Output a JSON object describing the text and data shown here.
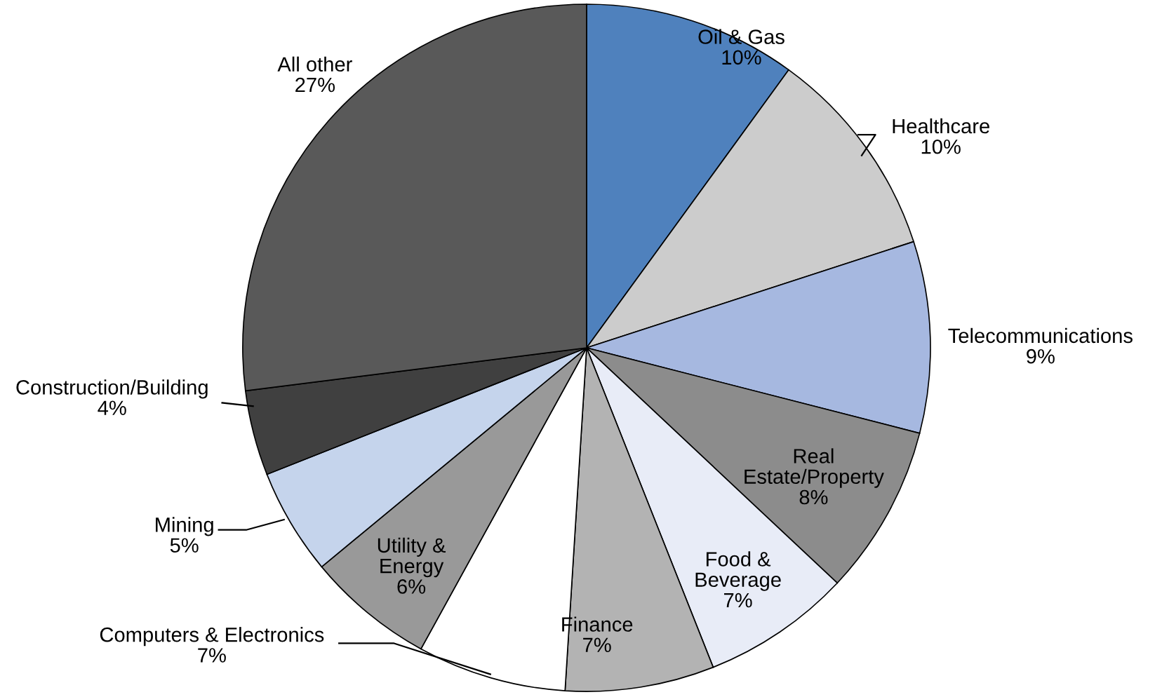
{
  "chart_data": {
    "type": "pie",
    "categories": [
      "Oil & Gas",
      "Healthcare",
      "Telecommunications",
      "Real\nEstate/Property",
      "Food &\nBeverage",
      "Finance",
      "Computers & Electronics",
      "Utility &\nEnergy",
      "Mining",
      "Construction/Building",
      "All other"
    ],
    "values": [
      10,
      10,
      9,
      8,
      7,
      7,
      7,
      6,
      5,
      4,
      27
    ],
    "colors": [
      "#4f81bd",
      "#cccccc",
      "#a6b8e0",
      "#8c8c8c",
      "#e8ecf7",
      "#b3b3b3",
      "#ffffff",
      "#999999",
      "#c5d4ec",
      "#404040",
      "#595959"
    ],
    "value_labels": [
      "10%",
      "10%",
      "9%",
      "8%",
      "7%",
      "7%",
      "7%",
      "6%",
      "5%",
      "4%",
      "27%"
    ]
  }
}
